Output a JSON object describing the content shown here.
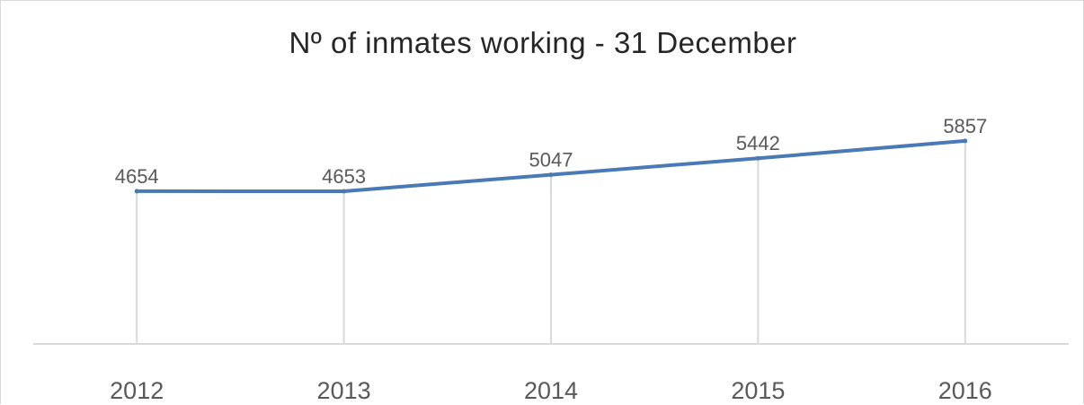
{
  "chart_data": {
    "type": "line",
    "title": "Nº of inmates working - 31 December",
    "xlabel": "",
    "ylabel": "",
    "categories": [
      "2012",
      "2013",
      "2014",
      "2015",
      "2016"
    ],
    "series": [
      {
        "values": [
          4654,
          4653,
          5047,
          5442,
          5857
        ],
        "color": "#4a7ab5"
      }
    ],
    "ylim": [
      1000,
      6500
    ],
    "grid": "vertical drop lines",
    "legend": "none",
    "colors": {
      "line": "#4a7ab5",
      "drop_line": "#d9d9d9",
      "axis": "#d9d9d9",
      "text": "#595959",
      "title": "#262626"
    }
  }
}
